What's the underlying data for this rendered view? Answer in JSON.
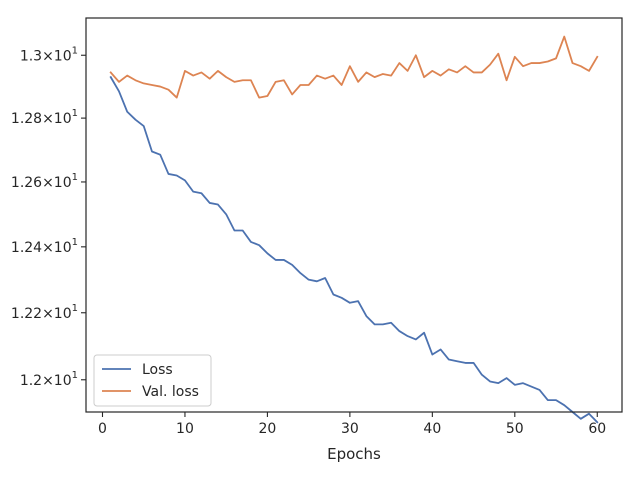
{
  "chart_data": {
    "type": "line",
    "title": "",
    "xlabel": "Epochs",
    "ylabel": "",
    "xlim": [
      -2,
      63
    ],
    "ylim": [
      11.905,
      13.12
    ],
    "y_scale": "log",
    "grid": false,
    "legend_position": "lower-left",
    "x_ticks": [
      0,
      10,
      20,
      30,
      40,
      50,
      60
    ],
    "x_tick_labels": [
      "0",
      "10",
      "20",
      "30",
      "40",
      "50",
      "60"
    ],
    "y_ticks": [
      12.0,
      12.2,
      12.4,
      12.6,
      12.8,
      13.0
    ],
    "y_tick_labels": [
      "1.2×10",
      "1.22×10",
      "1.24×10",
      "1.26×10",
      "1.28×10",
      "1.3×10"
    ],
    "y_tick_exponent": "1",
    "x": [
      1,
      2,
      3,
      4,
      5,
      6,
      7,
      8,
      9,
      10,
      11,
      12,
      13,
      14,
      15,
      16,
      17,
      18,
      19,
      20,
      21,
      22,
      23,
      24,
      25,
      26,
      27,
      28,
      29,
      30,
      31,
      32,
      33,
      34,
      35,
      36,
      37,
      38,
      39,
      40,
      41,
      42,
      43,
      44,
      45,
      46,
      47,
      48,
      49,
      50,
      51,
      52,
      53,
      54,
      55,
      56,
      57,
      58,
      59,
      60
    ],
    "series": [
      {
        "name": "Loss",
        "color": "#4c72b0",
        "values": [
          12.93,
          12.885,
          12.82,
          12.795,
          12.775,
          12.695,
          12.685,
          12.625,
          12.62,
          12.605,
          12.57,
          12.565,
          12.535,
          12.53,
          12.5,
          12.45,
          12.45,
          12.415,
          12.405,
          12.38,
          12.36,
          12.36,
          12.345,
          12.32,
          12.3,
          12.295,
          12.305,
          12.255,
          12.245,
          12.23,
          12.235,
          12.19,
          12.165,
          12.165,
          12.17,
          12.145,
          12.13,
          12.12,
          12.14,
          12.075,
          12.09,
          12.06,
          12.055,
          12.05,
          12.05,
          12.015,
          11.995,
          11.99,
          12.005,
          11.985,
          11.99,
          11.98,
          11.97,
          11.94,
          11.94,
          11.925,
          11.905,
          11.885,
          11.9,
          11.875
        ]
      },
      {
        "name": "Val. loss",
        "color": "#dd8452",
        "values": [
          12.945,
          12.915,
          12.935,
          12.92,
          12.91,
          12.905,
          12.9,
          12.89,
          12.865,
          12.95,
          12.935,
          12.945,
          12.925,
          12.95,
          12.93,
          12.915,
          12.92,
          12.92,
          12.865,
          12.87,
          12.915,
          12.92,
          12.875,
          12.905,
          12.905,
          12.935,
          12.925,
          12.935,
          12.905,
          12.965,
          12.915,
          12.945,
          12.93,
          12.94,
          12.935,
          12.975,
          12.95,
          13.0,
          12.93,
          12.95,
          12.935,
          12.955,
          12.945,
          12.965,
          12.945,
          12.945,
          12.97,
          13.005,
          12.92,
          12.995,
          12.965,
          12.975,
          12.975,
          12.98,
          12.99,
          13.06,
          12.975,
          12.965,
          12.95,
          12.995
        ]
      }
    ]
  }
}
